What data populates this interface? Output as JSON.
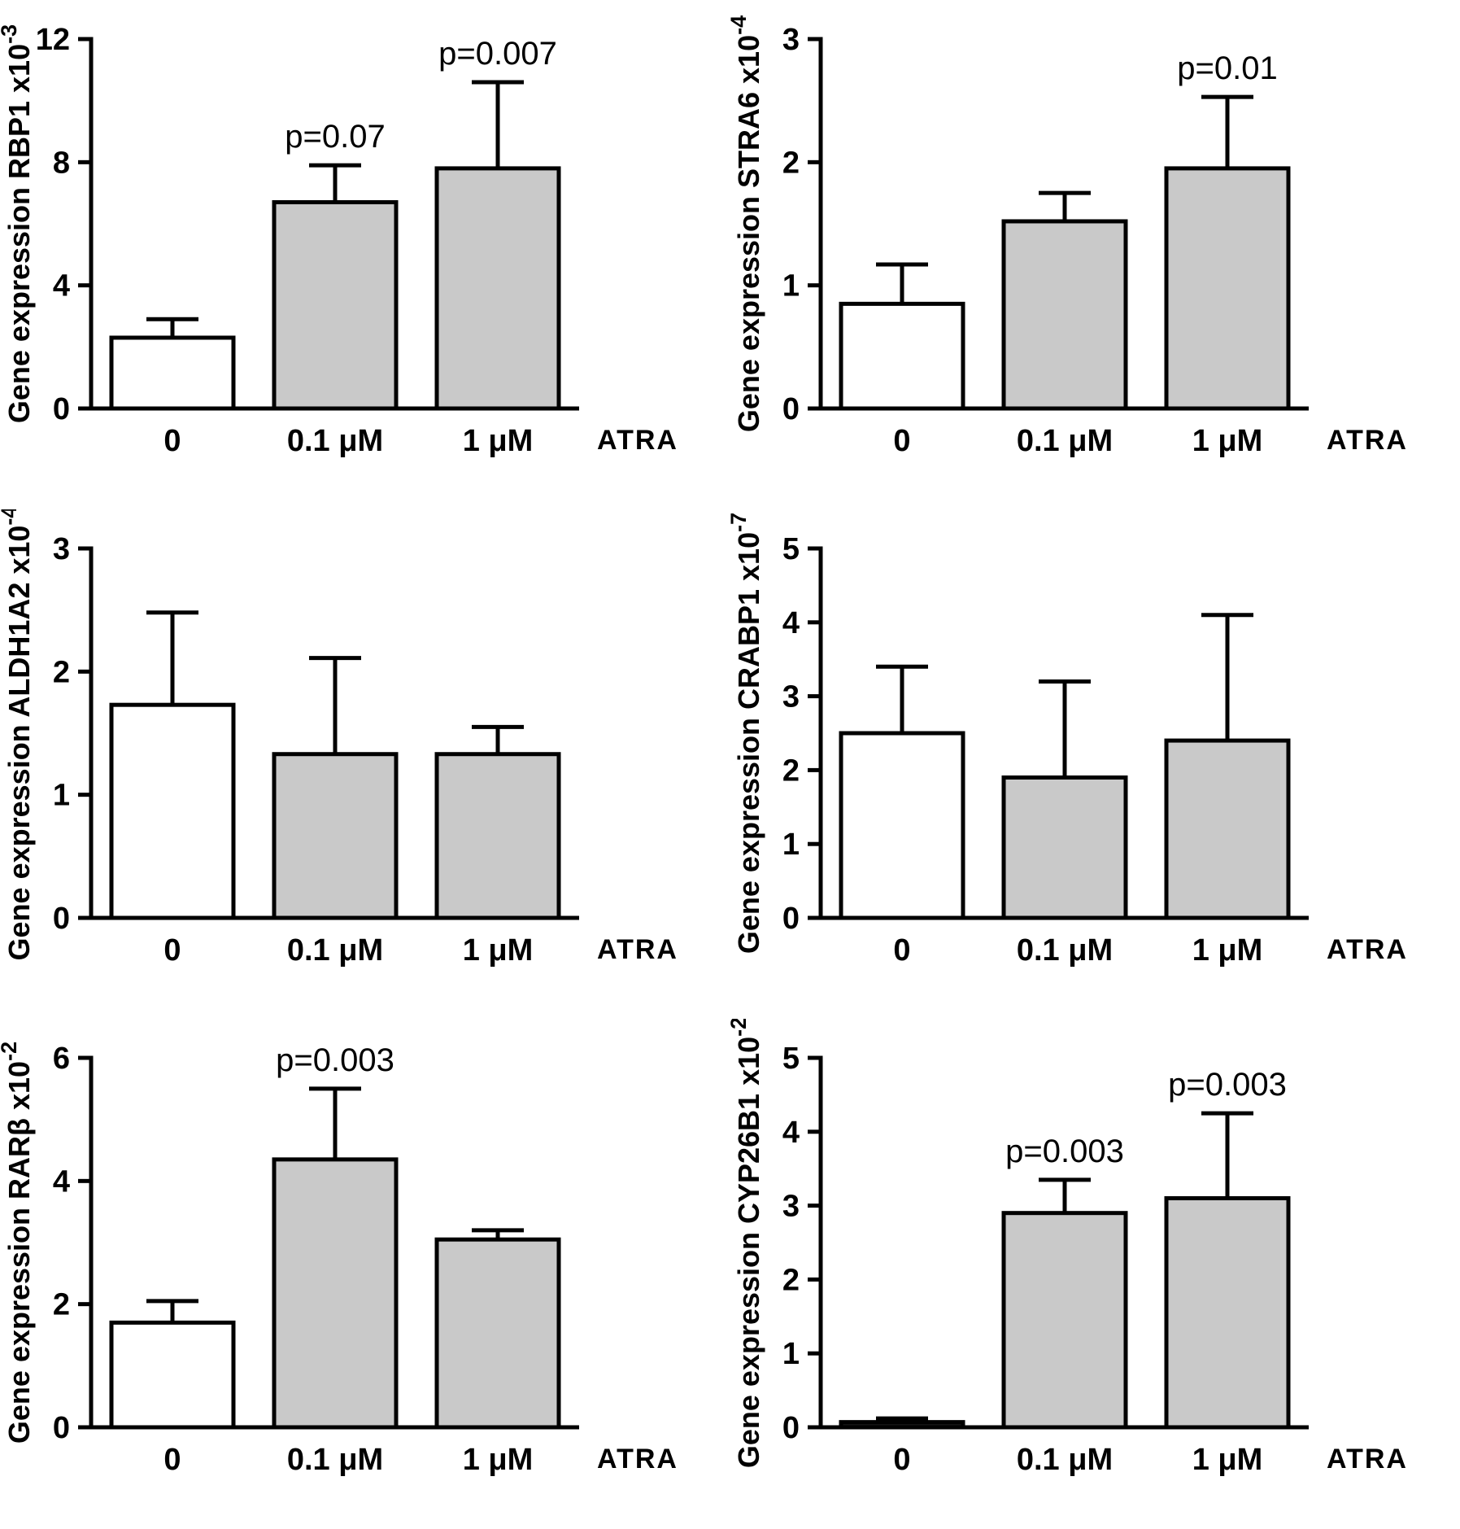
{
  "figure": {
    "background": "#ffffff",
    "axis_color": "#000000",
    "bar_fill_control": "#ffffff",
    "bar_fill_treated": "#c9c9c9",
    "bar_fill_dark": "#161616",
    "bar_stroke": "#000000",
    "x_axis_suffix": "ATRA"
  },
  "chart_data": [
    {
      "type": "bar",
      "id": "rbp1",
      "ylabel_prefix": "Gene expression RBP1 x10",
      "ylabel_exponent": "-3",
      "categories": [
        "0",
        "0.1 μM",
        "1 μM"
      ],
      "x_suffix": "ATRA",
      "values": [
        2.3,
        6.7,
        7.8
      ],
      "errors_up": [
        0.6,
        1.2,
        2.8
      ],
      "annotations": [
        null,
        "p=0.07",
        "p=0.007"
      ],
      "bar_styles": [
        "control",
        "treated",
        "treated"
      ],
      "ylim": [
        0,
        12
      ],
      "yticks": [
        0,
        4,
        8,
        12
      ],
      "legend": "none",
      "grid": "off"
    },
    {
      "type": "bar",
      "id": "stra6",
      "ylabel_prefix": "Gene expression STRA6  x10",
      "ylabel_exponent": "-4",
      "categories": [
        "0",
        "0.1 μM",
        "1 μM"
      ],
      "x_suffix": "ATRA",
      "values": [
        0.85,
        1.52,
        1.95
      ],
      "errors_up": [
        0.32,
        0.23,
        0.58
      ],
      "annotations": [
        null,
        null,
        "p=0.01"
      ],
      "bar_styles": [
        "control",
        "treated",
        "treated"
      ],
      "ylim": [
        0,
        3
      ],
      "yticks": [
        0,
        1,
        2,
        3
      ],
      "legend": "none",
      "grid": "off"
    },
    {
      "type": "bar",
      "id": "aldh1a2",
      "ylabel_prefix": "Gene expression ALDH1A2  x10",
      "ylabel_exponent": "-4",
      "categories": [
        "0",
        "0.1 μM",
        "1 μM"
      ],
      "x_suffix": "ATRA",
      "values": [
        1.73,
        1.33,
        1.33
      ],
      "errors_up": [
        0.75,
        0.78,
        0.22
      ],
      "annotations": [
        null,
        null,
        null
      ],
      "bar_styles": [
        "control",
        "treated",
        "treated"
      ],
      "ylim": [
        0,
        3
      ],
      "yticks": [
        0,
        1,
        2,
        3
      ],
      "legend": "none",
      "grid": "off"
    },
    {
      "type": "bar",
      "id": "crabp1",
      "ylabel_prefix": "Gene expression CRABP1  x10",
      "ylabel_exponent": "-7",
      "categories": [
        "0",
        "0.1 μM",
        "1 μM"
      ],
      "x_suffix": "ATRA",
      "values": [
        2.5,
        1.9,
        2.4
      ],
      "errors_up": [
        0.9,
        1.3,
        1.7
      ],
      "annotations": [
        null,
        null,
        null
      ],
      "bar_styles": [
        "control",
        "treated",
        "treated"
      ],
      "ylim": [
        0,
        5
      ],
      "yticks": [
        0,
        1,
        2,
        3,
        4,
        5
      ],
      "legend": "none",
      "grid": "off"
    },
    {
      "type": "bar",
      "id": "rarb",
      "ylabel_prefix": "Gene expression RARβ  x10",
      "ylabel_exponent": "-2",
      "categories": [
        "0",
        "0.1 μM",
        "1 μM"
      ],
      "x_suffix": "ATRA",
      "values": [
        1.7,
        4.35,
        3.05
      ],
      "errors_up": [
        0.35,
        1.15,
        0.15
      ],
      "annotations": [
        null,
        "p=0.003",
        null
      ],
      "bar_styles": [
        "control",
        "treated",
        "treated"
      ],
      "ylim": [
        0,
        6
      ],
      "yticks": [
        0,
        2,
        4,
        6
      ],
      "legend": "none",
      "grid": "off"
    },
    {
      "type": "bar",
      "id": "cyp26b1",
      "ylabel_prefix": "Gene expression CYP26B1 x10",
      "ylabel_exponent": "-2",
      "categories": [
        "0",
        "0.1 μM",
        "1 μM"
      ],
      "x_suffix": "ATRA",
      "values": [
        0.07,
        2.9,
        3.1
      ],
      "errors_up": [
        0.05,
        0.45,
        1.15
      ],
      "annotations": [
        null,
        "p=0.003",
        "p=0.003"
      ],
      "bar_styles": [
        "dark",
        "treated",
        "treated"
      ],
      "ylim": [
        0,
        5
      ],
      "yticks": [
        0,
        1,
        2,
        3,
        4,
        5
      ],
      "legend": "none",
      "grid": "off"
    }
  ]
}
